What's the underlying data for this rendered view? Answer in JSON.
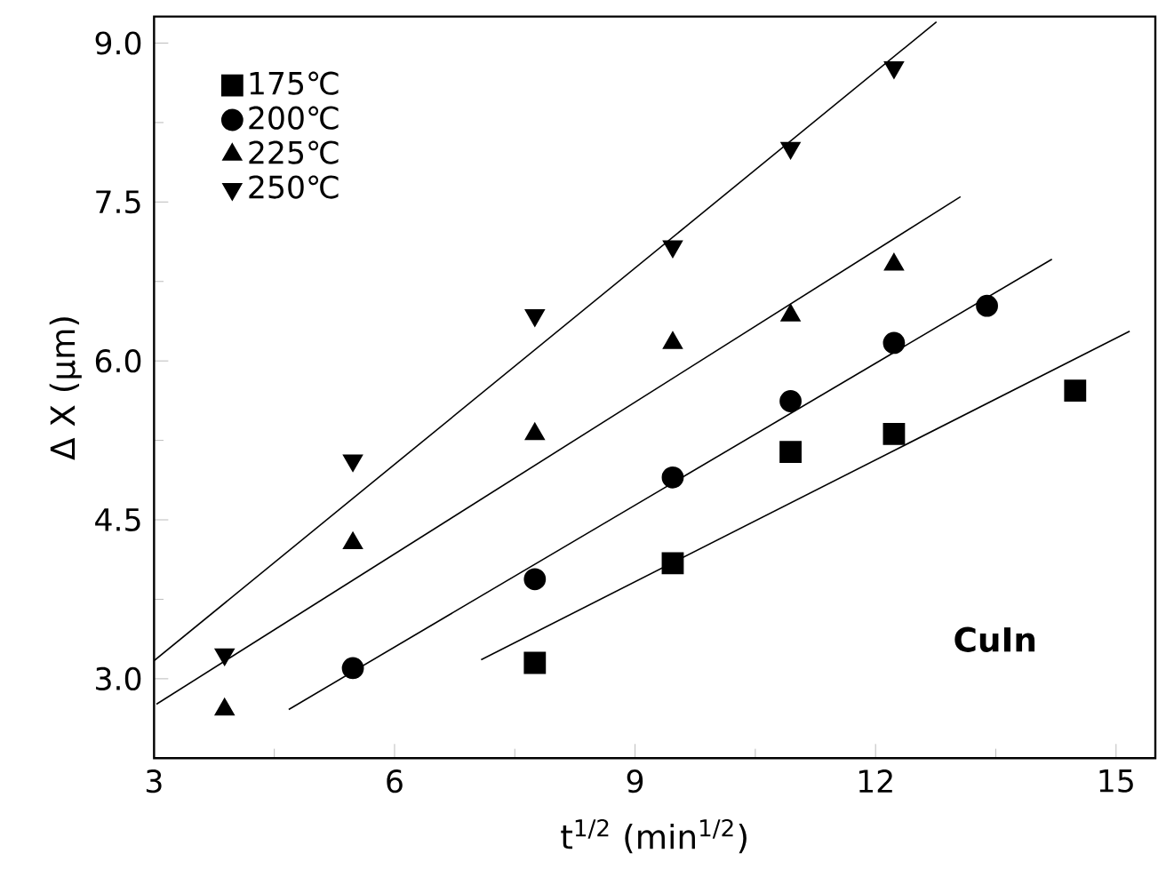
{
  "chart_data": {
    "type": "scatter",
    "xlabel": "t$^{1/2}$ (min$^{1/2}$)",
    "ylabel": "Δ X (μm)",
    "xlim": [
      3,
      15.49
    ],
    "ylim": [
      2.25,
      9.25
    ],
    "xticks": [
      3,
      {
        "value": 4.5,
        "label": null
      },
      6,
      {
        "value": 7.5,
        "label": null
      },
      9,
      {
        "value": 10.5,
        "label": null
      },
      12,
      {
        "value": 13.5,
        "label": null
      },
      15
    ],
    "yticks": [
      {
        "value": 3,
        "label": "3.0"
      },
      {
        "value": 3.75,
        "label": null
      },
      {
        "value": 4.5,
        "label": "4.5"
      },
      {
        "value": 5.25,
        "label": null
      },
      {
        "value": 6,
        "label": "6.0"
      },
      {
        "value": 6.75,
        "label": null
      },
      {
        "value": 7.5,
        "label": "7.5"
      },
      {
        "value": 8.25,
        "label": null
      },
      {
        "value": 9,
        "label": "9.0"
      }
    ],
    "legend": "top left",
    "grid": false,
    "annotations": [
      "CuIn"
    ],
    "series": [
      {
        "name": "175℃",
        "color": "#000000",
        "marker": "square",
        "x": [
          7.75,
          9.47,
          10.94,
          12.23,
          14.49
        ],
        "values": [
          3.15,
          4.09,
          5.14,
          5.31,
          5.72
        ]
      },
      {
        "name": "200℃",
        "color": "#000000",
        "marker": "circle",
        "x": [
          5.48,
          7.75,
          9.47,
          10.94,
          12.23,
          13.39
        ],
        "values": [
          3.1,
          3.94,
          4.9,
          5.62,
          6.17,
          6.52
        ]
      },
      {
        "name": "225℃",
        "color": "#000000",
        "marker": "triangle",
        "x": [
          3.88,
          5.48,
          7.75,
          9.47,
          10.94,
          12.23
        ],
        "values": [
          2.71,
          4.28,
          5.31,
          6.17,
          6.43,
          6.91
        ]
      },
      {
        "name": "250℃",
        "color": "#000000",
        "marker": "triangle_down",
        "x": [
          3.88,
          5.48,
          7.75,
          9.47,
          10.94,
          12.23
        ],
        "values": [
          3.23,
          5.06,
          6.43,
          7.08,
          8.01,
          8.77
        ]
      },
      {
        "type": "line",
        "color": "#000000",
        "marker": "none",
        "x": [
          7.08,
          15.17
        ],
        "values": [
          3.18,
          6.28
        ]
      },
      {
        "type": "line",
        "color": "#000000",
        "marker": "none",
        "x": [
          4.68,
          14.2
        ],
        "values": [
          2.71,
          6.96
        ]
      },
      {
        "type": "line",
        "color": "#000000",
        "marker": "none",
        "x": [
          3.03,
          13.06
        ],
        "values": [
          2.76,
          7.55
        ]
      },
      {
        "type": "line",
        "color": "#000000",
        "marker": "none",
        "x": [
          3,
          12.76
        ],
        "values": [
          3.17,
          9.2
        ]
      }
    ]
  }
}
